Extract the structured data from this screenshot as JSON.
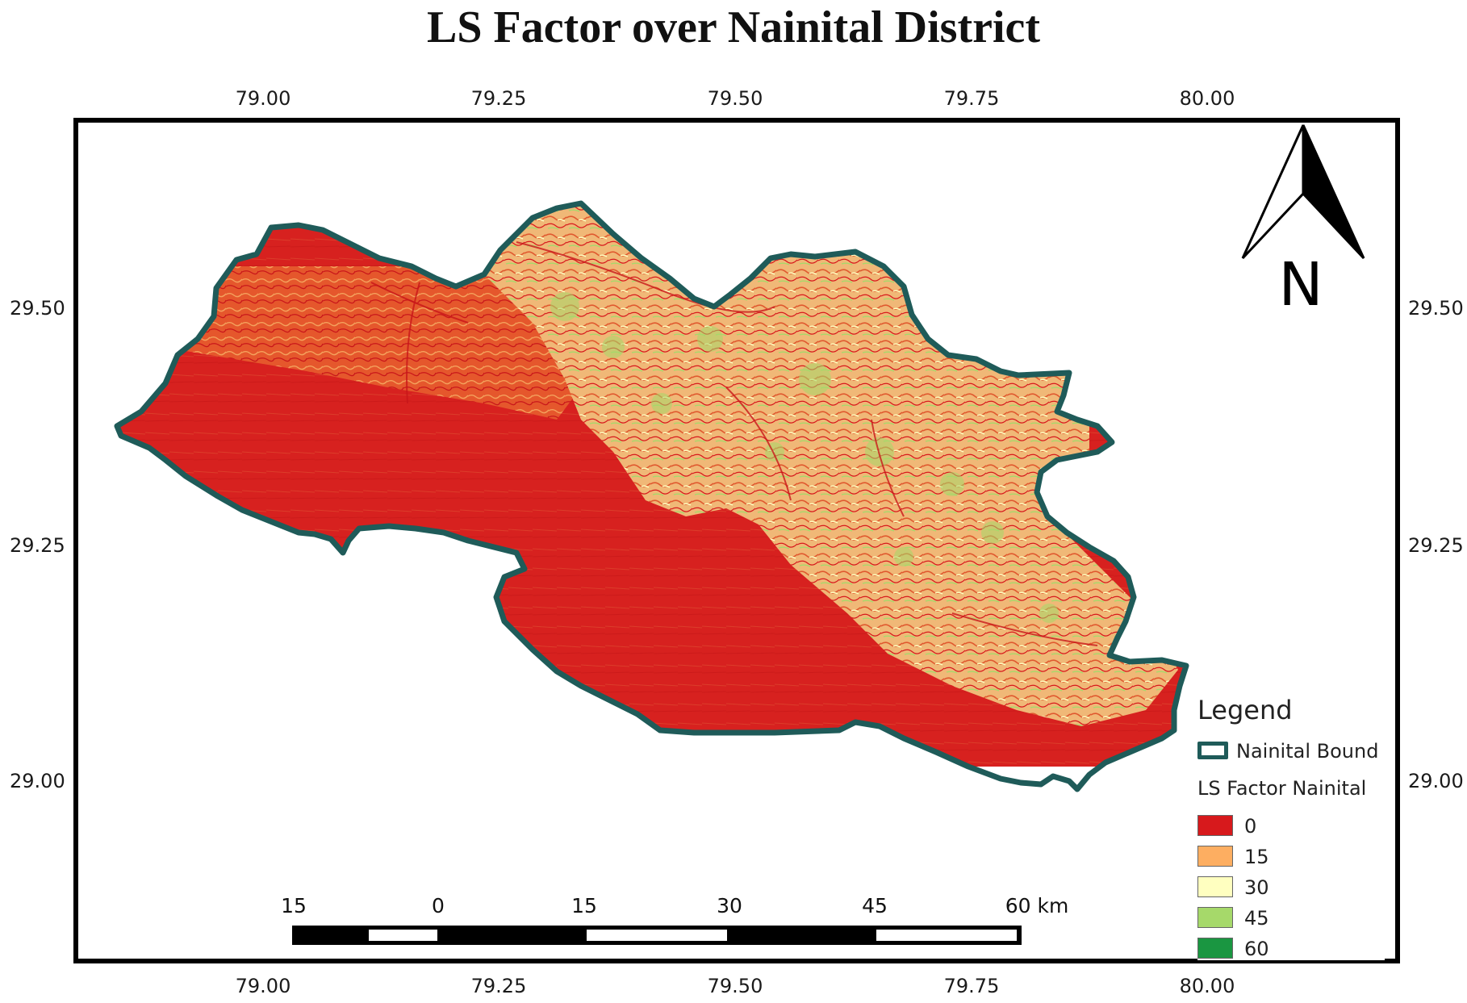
{
  "title": "LS Factor over Nainital District",
  "axes": {
    "top_ticks": [
      "79.00",
      "79.25",
      "79.50",
      "79.75",
      "80.00"
    ],
    "bottom_ticks": [
      "79.00",
      "79.25",
      "79.50",
      "79.75",
      "80.00"
    ],
    "left_ticks": [
      "29.50",
      "29.25",
      "29.00"
    ],
    "right_ticks": [
      "29.50",
      "29.25",
      "29.00"
    ]
  },
  "north_arrow": {
    "label": "N",
    "icon": "north-arrow-icon"
  },
  "scale_bar": {
    "labels": [
      "15",
      "0",
      "15",
      "30",
      "45",
      "60 km"
    ]
  },
  "legend": {
    "title": "Legend",
    "boundary_label": "Nainital Bound",
    "boundary_color": "#1f5b59",
    "raster_label": "LS Factor Nainital",
    "classes": [
      {
        "label": "0",
        "color": "#d7191c"
      },
      {
        "label": "15",
        "color": "#fdae61"
      },
      {
        "label": "30",
        "color": "#ffffc0"
      },
      {
        "label": "45",
        "color": "#a6d96a"
      },
      {
        "label": "60",
        "color": "#1a9641"
      }
    ]
  }
}
